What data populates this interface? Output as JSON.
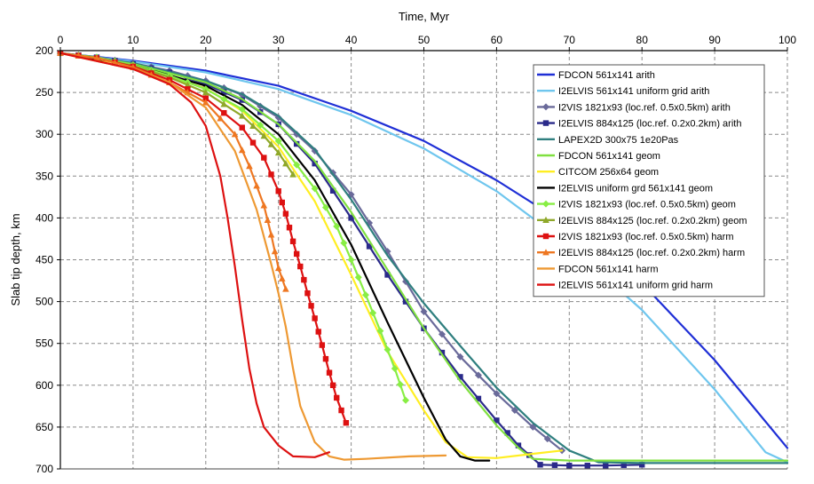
{
  "chart_data": {
    "type": "line",
    "xlabel": "Time, Myr",
    "ylabel": "Slab tip depth, km",
    "xlim": [
      0,
      100
    ],
    "ylim": [
      200,
      700
    ],
    "y_inverted": true,
    "x_axis_position": "top",
    "xticks": [
      0,
      10,
      20,
      30,
      40,
      50,
      60,
      70,
      80,
      90,
      100
    ],
    "yticks": [
      200,
      250,
      300,
      350,
      400,
      450,
      500,
      550,
      600,
      650,
      700
    ],
    "grid": true,
    "legend_position": "top-right",
    "series": [
      {
        "name": "FDCON 561x141 arith",
        "color": "#1f2fd6",
        "marker": "none",
        "points": [
          [
            0,
            203
          ],
          [
            10,
            212
          ],
          [
            20,
            224
          ],
          [
            30,
            242
          ],
          [
            40,
            272
          ],
          [
            50,
            308
          ],
          [
            60,
            355
          ],
          [
            70,
            410
          ],
          [
            80,
            478
          ],
          [
            90,
            570
          ],
          [
            100,
            675
          ]
        ]
      },
      {
        "name": "I2ELVIS 561x141 uniform grid arith",
        "color": "#6fc6ee",
        "marker": "none",
        "points": [
          [
            0,
            203
          ],
          [
            10,
            213
          ],
          [
            20,
            226
          ],
          [
            30,
            246
          ],
          [
            40,
            277
          ],
          [
            50,
            317
          ],
          [
            60,
            368
          ],
          [
            70,
            433
          ],
          [
            80,
            510
          ],
          [
            90,
            605
          ],
          [
            97,
            680
          ],
          [
            100,
            692
          ]
        ]
      },
      {
        "name": "I2VIS 1821x93 (loc.ref. 0.5x0.5km) arith",
        "color": "#6a6a9a",
        "marker": "diamond",
        "points": [
          [
            0,
            203
          ],
          [
            5,
            208
          ],
          [
            10,
            215
          ],
          [
            15,
            224
          ],
          [
            20,
            236
          ],
          [
            25,
            253
          ],
          [
            30,
            280
          ],
          [
            35,
            320
          ],
          [
            40,
            372
          ],
          [
            45,
            440
          ],
          [
            50,
            512
          ],
          [
            55,
            566
          ],
          [
            60,
            610
          ],
          [
            65,
            650
          ],
          [
            69,
            678
          ]
        ]
      },
      {
        "name": "I2ELVIS 884x125 (loc.ref. 0.2x0.2km) arith",
        "color": "#2a2a8a",
        "marker": "square",
        "points": [
          [
            0,
            203
          ],
          [
            5,
            208
          ],
          [
            10,
            216
          ],
          [
            15,
            226
          ],
          [
            20,
            240
          ],
          [
            25,
            259
          ],
          [
            30,
            288
          ],
          [
            35,
            335
          ],
          [
            40,
            400
          ],
          [
            45,
            468
          ],
          [
            50,
            532
          ],
          [
            55,
            590
          ],
          [
            60,
            642
          ],
          [
            63,
            672
          ],
          [
            66,
            695
          ],
          [
            70,
            696
          ],
          [
            75,
            696
          ],
          [
            80,
            695
          ]
        ]
      },
      {
        "name": "LAPEX2D 300x75 1e20Pas",
        "color": "#2f7f7f",
        "marker": "none",
        "points": [
          [
            0,
            203
          ],
          [
            10,
            215
          ],
          [
            20,
            236
          ],
          [
            25,
            252
          ],
          [
            30,
            278
          ],
          [
            35,
            318
          ],
          [
            40,
            378
          ],
          [
            45,
            445
          ],
          [
            50,
            502
          ],
          [
            55,
            553
          ],
          [
            60,
            603
          ],
          [
            65,
            645
          ],
          [
            70,
            678
          ],
          [
            74,
            692
          ],
          [
            80,
            693
          ],
          [
            90,
            693
          ],
          [
            100,
            693
          ]
        ]
      },
      {
        "name": "FDCON 561x141 geom",
        "color": "#80e040",
        "marker": "none",
        "points": [
          [
            0,
            203
          ],
          [
            10,
            216
          ],
          [
            20,
            238
          ],
          [
            25,
            258
          ],
          [
            30,
            288
          ],
          [
            35,
            332
          ],
          [
            40,
            393
          ],
          [
            45,
            462
          ],
          [
            50,
            532
          ],
          [
            55,
            595
          ],
          [
            60,
            648
          ],
          [
            63,
            675
          ],
          [
            65,
            688
          ],
          [
            70,
            690
          ],
          [
            80,
            690
          ],
          [
            90,
            690
          ],
          [
            100,
            690
          ]
        ]
      },
      {
        "name": "CITCOM 256x64 geom",
        "color": "#ffee22",
        "marker": "none",
        "points": [
          [
            0,
            203
          ],
          [
            10,
            218
          ],
          [
            20,
            245
          ],
          [
            25,
            272
          ],
          [
            30,
            315
          ],
          [
            35,
            380
          ],
          [
            40,
            468
          ],
          [
            45,
            560
          ],
          [
            50,
            630
          ],
          [
            53,
            668
          ],
          [
            56,
            686
          ],
          [
            60,
            687
          ],
          [
            65,
            682
          ],
          [
            69,
            678
          ]
        ]
      },
      {
        "name": "I2ELVIS uniform grd 561x141 geom",
        "color": "#000000",
        "marker": "none",
        "points": [
          [
            0,
            203
          ],
          [
            10,
            217
          ],
          [
            20,
            242
          ],
          [
            25,
            265
          ],
          [
            30,
            300
          ],
          [
            35,
            355
          ],
          [
            40,
            432
          ],
          [
            45,
            525
          ],
          [
            50,
            615
          ],
          [
            53,
            665
          ],
          [
            55,
            685
          ],
          [
            57,
            690
          ],
          [
            59,
            690
          ]
        ]
      },
      {
        "name": "I2VIS 1821x93 (loc.ref. 0.5x0.5km) geom",
        "color": "#88ee44",
        "marker": "diamond",
        "points": [
          [
            0,
            203
          ],
          [
            5,
            208
          ],
          [
            10,
            217
          ],
          [
            15,
            230
          ],
          [
            20,
            246
          ],
          [
            25,
            270
          ],
          [
            30,
            308
          ],
          [
            35,
            365
          ],
          [
            38,
            410
          ],
          [
            40,
            450
          ],
          [
            42,
            492
          ],
          [
            44,
            535
          ],
          [
            46,
            580
          ],
          [
            47.5,
            618
          ]
        ]
      },
      {
        "name": "I2ELVIS 884x125 (loc.ref. 0.2x0.2km) geom",
        "color": "#8fa82a",
        "marker": "triangle",
        "points": [
          [
            0,
            203
          ],
          [
            5,
            209
          ],
          [
            10,
            218
          ],
          [
            15,
            232
          ],
          [
            20,
            250
          ],
          [
            25,
            278
          ],
          [
            28,
            302
          ],
          [
            30,
            322
          ],
          [
            32,
            348
          ]
        ]
      },
      {
        "name": "I2VIS 1821x93 (loc.ref. 0.5x0.5km) harm",
        "color": "#dd1111",
        "marker": "square",
        "points": [
          [
            0,
            203
          ],
          [
            5,
            209
          ],
          [
            10,
            219
          ],
          [
            15,
            235
          ],
          [
            20,
            257
          ],
          [
            25,
            292
          ],
          [
            28,
            328
          ],
          [
            30,
            368
          ],
          [
            31,
            395
          ],
          [
            32,
            428
          ],
          [
            33,
            458
          ],
          [
            34,
            490
          ],
          [
            35,
            520
          ],
          [
            36,
            552
          ],
          [
            37,
            585
          ],
          [
            38,
            615
          ],
          [
            39.3,
            645
          ]
        ]
      },
      {
        "name": "I2ELVIS 884x125 (loc.ref. 0.2x0.2km) harm",
        "color": "#ee7722",
        "marker": "triangle",
        "points": [
          [
            0,
            203
          ],
          [
            5,
            209
          ],
          [
            10,
            220
          ],
          [
            15,
            238
          ],
          [
            20,
            262
          ],
          [
            24,
            300
          ],
          [
            26,
            338
          ],
          [
            28,
            385
          ],
          [
            29,
            420
          ],
          [
            30,
            460
          ],
          [
            31,
            485
          ]
        ]
      },
      {
        "name": "FDCON 561x141 harm",
        "color": "#ee9933",
        "marker": "none",
        "points": [
          [
            0,
            203
          ],
          [
            10,
            222
          ],
          [
            15,
            238
          ],
          [
            20,
            268
          ],
          [
            24,
            320
          ],
          [
            27,
            390
          ],
          [
            29,
            455
          ],
          [
            30,
            490
          ],
          [
            31,
            530
          ],
          [
            32,
            580
          ],
          [
            33,
            625
          ],
          [
            35,
            668
          ],
          [
            37,
            685
          ],
          [
            39,
            689
          ],
          [
            42,
            688
          ],
          [
            48,
            685
          ],
          [
            53,
            684
          ]
        ]
      },
      {
        "name": "I2ELVIS 561x141 uniform grid harm",
        "color": "#dd1111",
        "marker": "none",
        "points": [
          [
            0,
            203
          ],
          [
            10,
            222
          ],
          [
            15,
            240
          ],
          [
            18,
            262
          ],
          [
            20,
            290
          ],
          [
            22,
            350
          ],
          [
            23,
            400
          ],
          [
            24,
            458
          ],
          [
            25,
            522
          ],
          [
            26,
            580
          ],
          [
            27,
            622
          ],
          [
            28,
            650
          ],
          [
            30,
            672
          ],
          [
            32,
            685
          ],
          [
            35,
            686
          ],
          [
            37,
            680
          ]
        ]
      }
    ]
  }
}
